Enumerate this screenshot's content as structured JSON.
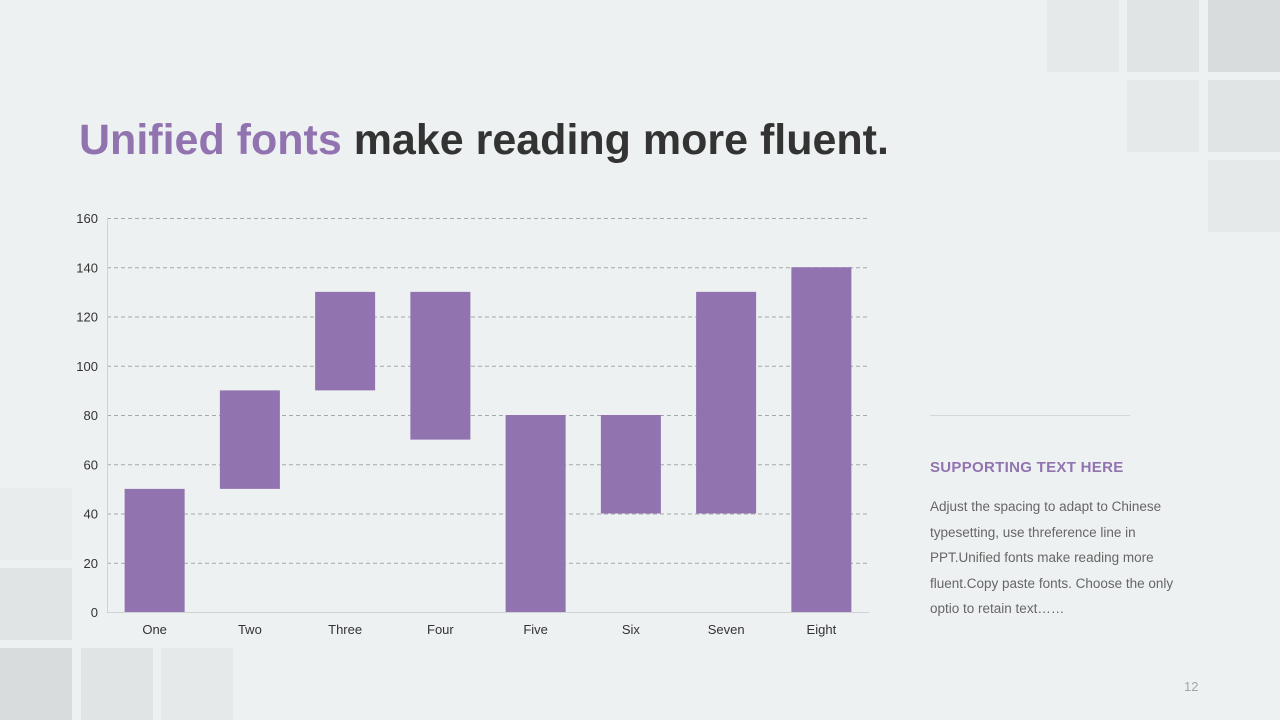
{
  "slide": {
    "title_accent": "Unified fonts",
    "title_rest": " make reading more fluent.",
    "sidebar": {
      "heading": "SUPPORTING TEXT HERE",
      "body": "Adjust the spacing to adapt to Chinese typesetting, use threference line in PPT.Unified fonts make reading more fluent.Copy paste fonts. Choose the only optio to retain text……"
    },
    "page_number": "12"
  },
  "colors": {
    "accent": "#9173b0",
    "title_text": "#333333",
    "bar": "#9173b0",
    "gridline": "#a6a9ab",
    "axis_text": "#333333",
    "background": "#eef1f2"
  },
  "chart_data": {
    "type": "bar",
    "subtype": "floating",
    "categories": [
      "One",
      "Two",
      "Three",
      "Four",
      "Five",
      "Six",
      "Seven",
      "Eight"
    ],
    "ranges": [
      [
        0,
        50
      ],
      [
        50,
        90
      ],
      [
        90,
        130
      ],
      [
        70,
        130
      ],
      [
        0,
        80
      ],
      [
        40,
        80
      ],
      [
        40,
        130
      ],
      [
        0,
        140
      ]
    ],
    "y_ticks": [
      0,
      20,
      40,
      60,
      80,
      100,
      120,
      140,
      160
    ],
    "ylim": [
      0,
      160
    ],
    "grid": true,
    "grid_style": "dashed",
    "legend": "none",
    "title": "",
    "xlabel": "",
    "ylabel": ""
  }
}
